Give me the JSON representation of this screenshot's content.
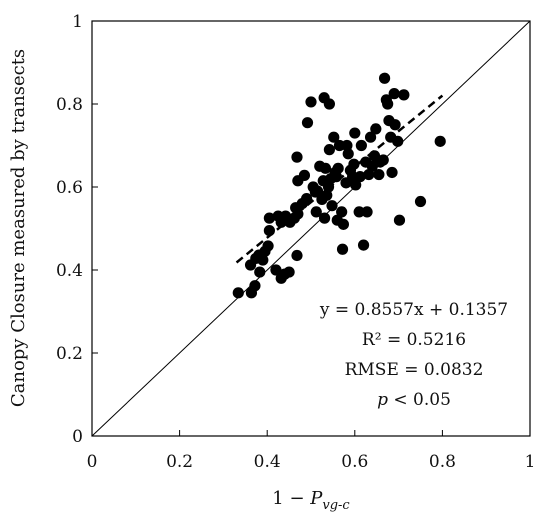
{
  "chart_data": {
    "type": "scatter",
    "title": "",
    "xlabel": {
      "prefix": "1 − ",
      "variable": "P",
      "subscript": "vg-c"
    },
    "ylabel": "Canopy Closure measured by transects",
    "xlim": [
      0,
      1
    ],
    "ylim": [
      0,
      1
    ],
    "xticks": [
      {
        "value": 0,
        "label": "0"
      },
      {
        "value": 0.2,
        "label": "0.2"
      },
      {
        "value": 0.4,
        "label": "0.4"
      },
      {
        "value": 0.6,
        "label": "0.6"
      },
      {
        "value": 0.8,
        "label": "0.8"
      },
      {
        "value": 1,
        "label": "1"
      }
    ],
    "yticks": [
      {
        "value": 0,
        "label": "0"
      },
      {
        "value": 0.2,
        "label": "0.2"
      },
      {
        "value": 0.4,
        "label": "0.4"
      },
      {
        "value": 0.6,
        "label": "0.6"
      },
      {
        "value": 0.8,
        "label": "0.8"
      },
      {
        "value": 1,
        "label": "1"
      }
    ],
    "grid": false,
    "reference_line": {
      "style": "solid",
      "from": [
        0,
        0
      ],
      "to": [
        1,
        1
      ]
    },
    "trendline": {
      "style": "dashed",
      "slope": 0.8557,
      "intercept": 0.1357,
      "x_range": [
        0.33,
        0.8
      ]
    },
    "annotations": {
      "equation": "y = 0.8557x + 0.1357",
      "r2": "R² = 0.5216",
      "rmse": "RMSE = 0.0832",
      "p_symbol": "p",
      "p_rest": " < 0.05"
    },
    "series": [
      {
        "marker_color": "#000000",
        "points": [
          [
            0.334,
            0.345
          ],
          [
            0.364,
            0.345
          ],
          [
            0.372,
            0.362
          ],
          [
            0.362,
            0.412
          ],
          [
            0.374,
            0.428
          ],
          [
            0.381,
            0.436
          ],
          [
            0.39,
            0.424
          ],
          [
            0.383,
            0.395
          ],
          [
            0.395,
            0.445
          ],
          [
            0.402,
            0.458
          ],
          [
            0.405,
            0.495
          ],
          [
            0.405,
            0.525
          ],
          [
            0.42,
            0.4
          ],
          [
            0.432,
            0.38
          ],
          [
            0.44,
            0.39
          ],
          [
            0.45,
            0.395
          ],
          [
            0.432,
            0.515
          ],
          [
            0.425,
            0.53
          ],
          [
            0.442,
            0.53
          ],
          [
            0.452,
            0.515
          ],
          [
            0.462,
            0.525
          ],
          [
            0.47,
            0.535
          ],
          [
            0.468,
            0.435
          ],
          [
            0.465,
            0.55
          ],
          [
            0.48,
            0.56
          ],
          [
            0.47,
            0.615
          ],
          [
            0.468,
            0.672
          ],
          [
            0.485,
            0.628
          ],
          [
            0.49,
            0.572
          ],
          [
            0.492,
            0.755
          ],
          [
            0.5,
            0.805
          ],
          [
            0.505,
            0.6
          ],
          [
            0.51,
            0.588
          ],
          [
            0.512,
            0.54
          ],
          [
            0.515,
            0.59
          ],
          [
            0.52,
            0.65
          ],
          [
            0.525,
            0.57
          ],
          [
            0.528,
            0.615
          ],
          [
            0.531,
            0.525
          ],
          [
            0.533,
            0.645
          ],
          [
            0.53,
            0.815
          ],
          [
            0.542,
            0.8
          ],
          [
            0.536,
            0.58
          ],
          [
            0.54,
            0.6
          ],
          [
            0.542,
            0.69
          ],
          [
            0.545,
            0.62
          ],
          [
            0.548,
            0.555
          ],
          [
            0.552,
            0.72
          ],
          [
            0.555,
            0.635
          ],
          [
            0.558,
            0.625
          ],
          [
            0.56,
            0.52
          ],
          [
            0.562,
            0.645
          ],
          [
            0.565,
            0.7
          ],
          [
            0.57,
            0.54
          ],
          [
            0.574,
            0.51
          ],
          [
            0.572,
            0.45
          ],
          [
            0.58,
            0.61
          ],
          [
            0.582,
            0.7
          ],
          [
            0.585,
            0.68
          ],
          [
            0.59,
            0.64
          ],
          [
            0.595,
            0.625
          ],
          [
            0.598,
            0.655
          ],
          [
            0.6,
            0.73
          ],
          [
            0.602,
            0.605
          ],
          [
            0.61,
            0.54
          ],
          [
            0.612,
            0.625
          ],
          [
            0.62,
            0.46
          ],
          [
            0.615,
            0.7
          ],
          [
            0.625,
            0.66
          ],
          [
            0.628,
            0.54
          ],
          [
            0.632,
            0.63
          ],
          [
            0.636,
            0.72
          ],
          [
            0.64,
            0.65
          ],
          [
            0.645,
            0.675
          ],
          [
            0.648,
            0.74
          ],
          [
            0.655,
            0.63
          ],
          [
            0.658,
            0.66
          ],
          [
            0.665,
            0.665
          ],
          [
            0.668,
            0.862
          ],
          [
            0.672,
            0.81
          ],
          [
            0.675,
            0.8
          ],
          [
            0.678,
            0.76
          ],
          [
            0.682,
            0.72
          ],
          [
            0.685,
            0.635
          ],
          [
            0.69,
            0.825
          ],
          [
            0.692,
            0.75
          ],
          [
            0.698,
            0.71
          ],
          [
            0.702,
            0.52
          ],
          [
            0.712,
            0.822
          ],
          [
            0.75,
            0.565
          ],
          [
            0.795,
            0.71
          ]
        ]
      }
    ]
  }
}
